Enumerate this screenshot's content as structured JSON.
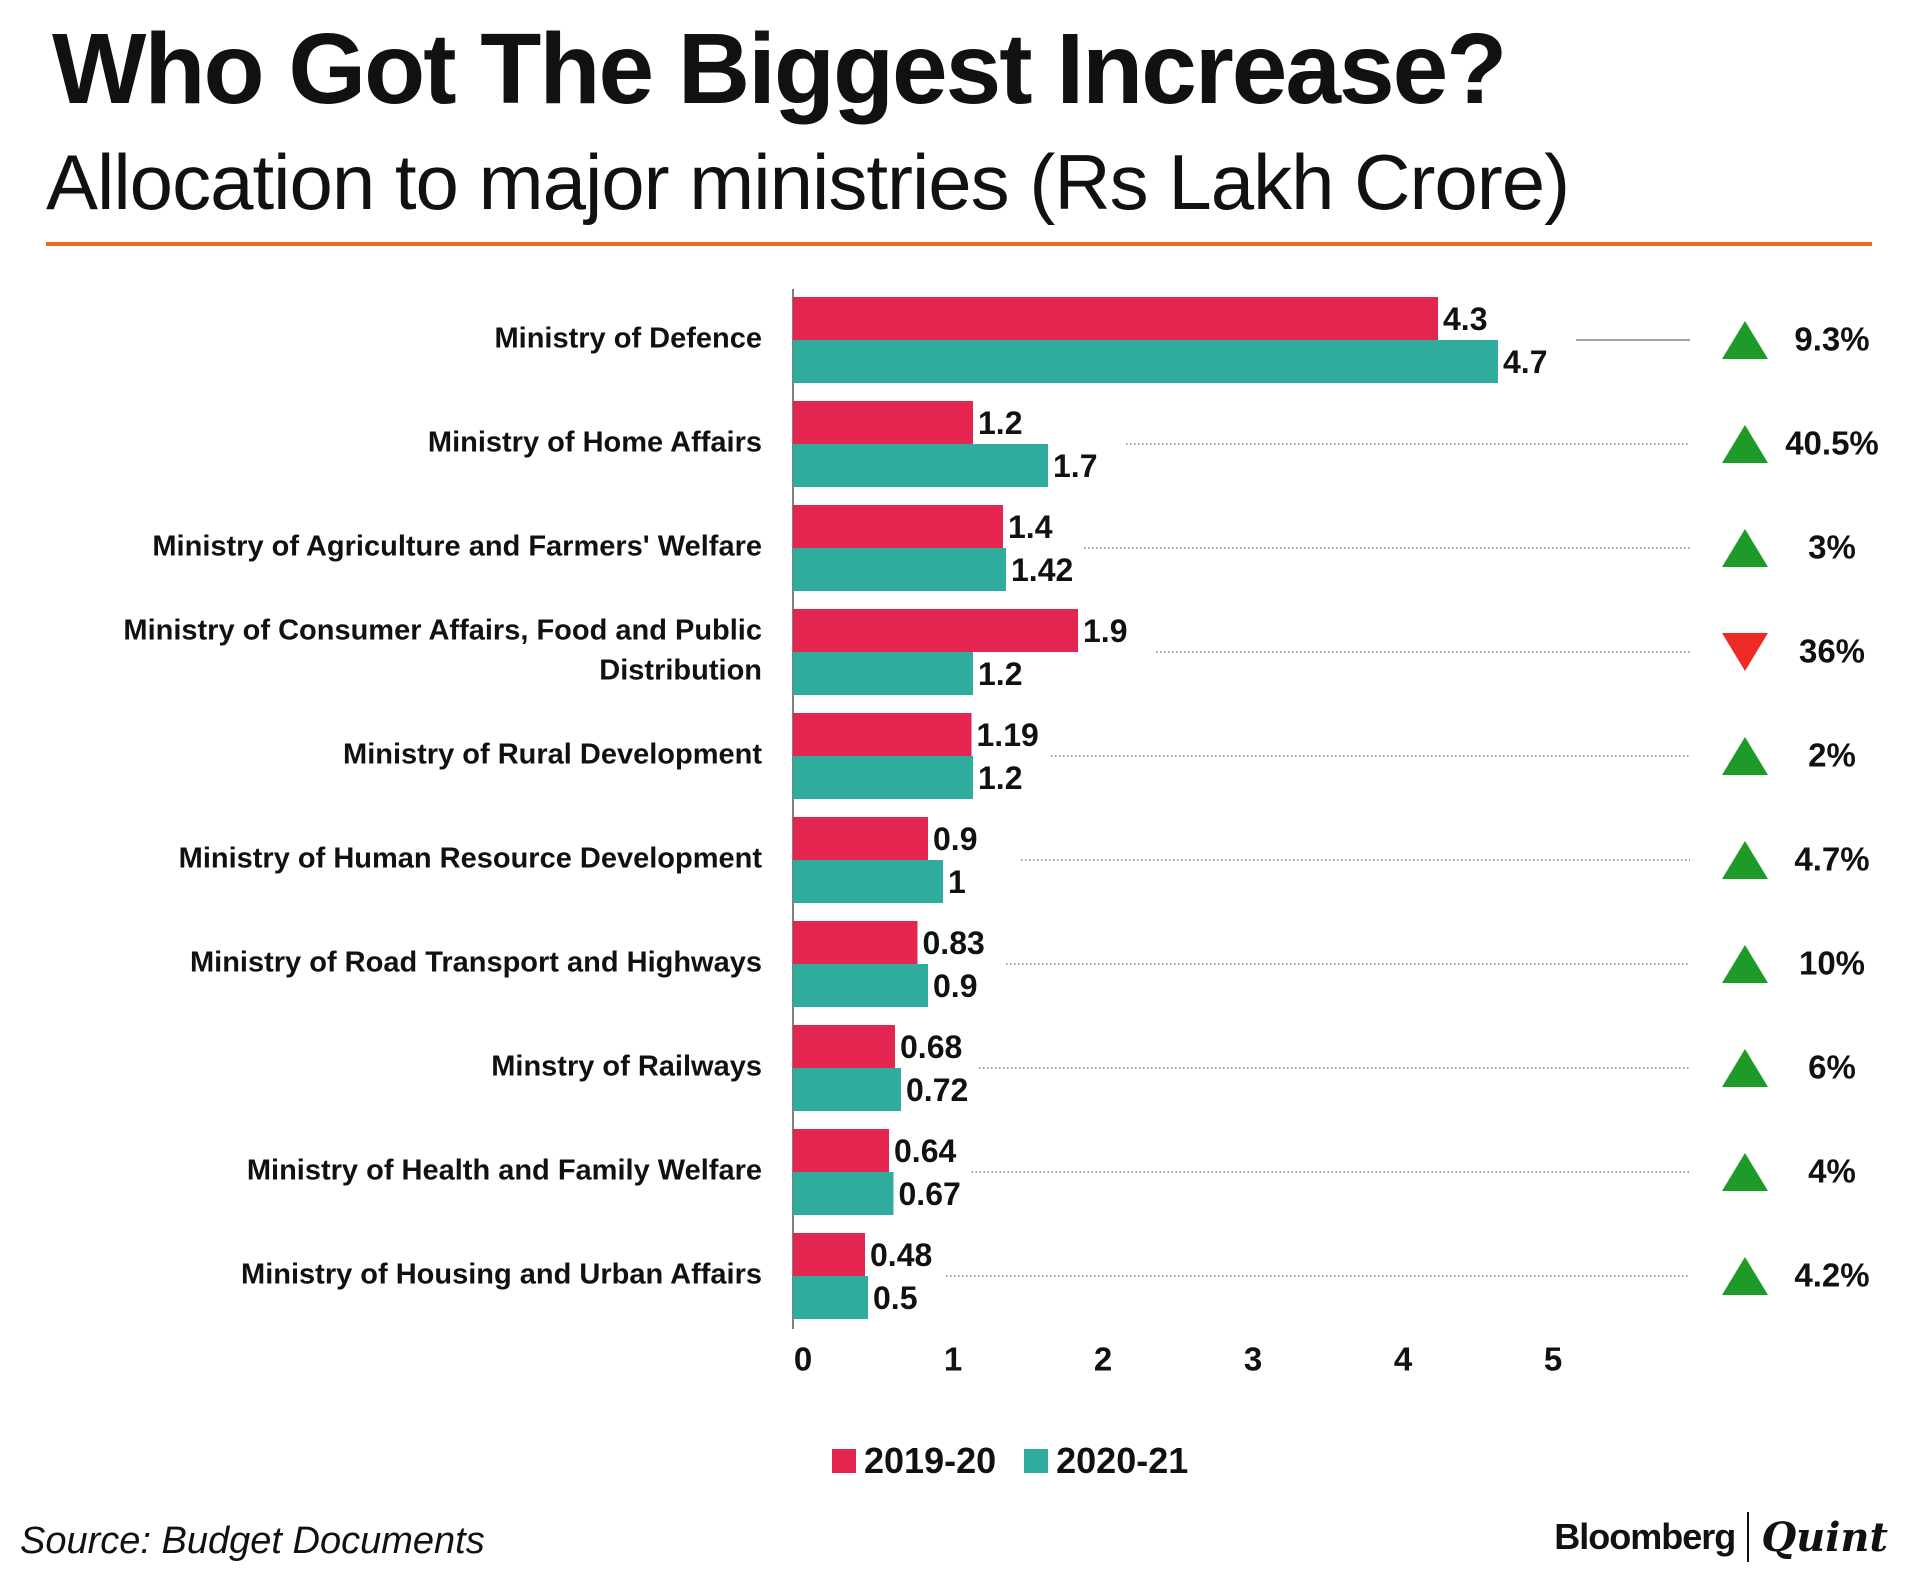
{
  "header": {
    "title": "Who Got The Biggest Increase?",
    "subtitle": "Allocation to major ministries (Rs Lakh Crore)"
  },
  "colors": {
    "series_2019": "#e3254f",
    "series_2020": "#2fac9e",
    "up": "#1e9a28",
    "down": "#ee2a24",
    "accent_rule": "#ee6a24"
  },
  "chart_data": {
    "type": "bar",
    "orientation": "horizontal",
    "title": "Who Got The Biggest Increase?",
    "subtitle": "Allocation to major ministries (Rs Lakh Crore)",
    "categories": [
      "Ministry of Defence",
      "Ministry of Home Affairs",
      "Ministry of Agriculture and Farmers' Welfare",
      "Ministry of Consumer Affairs, Food and Public Distribution",
      "Ministry of Rural Development",
      "Ministry of Human Resource Development",
      "Ministry of Road Transport and Highways",
      "Minstry of Railways",
      "Ministry of Health and Family Welfare",
      "Ministry of Housing and Urban Affairs"
    ],
    "category_label_lines": [
      [
        "Ministry of Defence"
      ],
      [
        "Ministry of Home Affairs"
      ],
      [
        "Ministry of Agriculture and Farmers' Welfare"
      ],
      [
        "Ministry of Consumer Affairs, Food and Public",
        "Distribution"
      ],
      [
        "Ministry of Rural Development"
      ],
      [
        "Ministry of Human Resource Development"
      ],
      [
        "Ministry of Road Transport and Highways"
      ],
      [
        "Minstry of Railways"
      ],
      [
        "Ministry of Health and Family Welfare"
      ],
      [
        "Ministry of Housing and Urban Affairs"
      ]
    ],
    "series": [
      {
        "name": "2019-20",
        "values": [
          4.3,
          1.2,
          1.4,
          1.9,
          1.19,
          0.9,
          0.83,
          0.68,
          0.64,
          0.48
        ],
        "labels": [
          "4.3",
          "1.2",
          "1.4",
          "1.9",
          "1.19",
          "0.9",
          "0.83",
          "0.68",
          "0.64",
          "0.48"
        ]
      },
      {
        "name": "2020-21",
        "values": [
          4.7,
          1.7,
          1.42,
          1.2,
          1.2,
          1,
          0.9,
          0.72,
          0.67,
          0.5
        ],
        "labels": [
          "4.7",
          "1.7",
          "1.42",
          "1.2",
          "1.2",
          "1",
          "0.9",
          "0.72",
          "0.67",
          "0.5"
        ]
      }
    ],
    "changes": [
      {
        "direction": "up",
        "label": "9.3%"
      },
      {
        "direction": "up",
        "label": "40.5%"
      },
      {
        "direction": "up",
        "label": "3%"
      },
      {
        "direction": "down",
        "label": "36%"
      },
      {
        "direction": "up",
        "label": "2%"
      },
      {
        "direction": "up",
        "label": "4.7%"
      },
      {
        "direction": "up",
        "label": "10%"
      },
      {
        "direction": "up",
        "label": "6%"
      },
      {
        "direction": "up",
        "label": "4%"
      },
      {
        "direction": "up",
        "label": "4.2%"
      }
    ],
    "xticks": [
      "0",
      "1",
      "2",
      "3",
      "4",
      "5"
    ],
    "xlim": [
      0,
      5
    ],
    "grid": false,
    "legend": "bottom-center"
  },
  "footer": {
    "source": "Source: Budget Documents",
    "brand_left": "Bloomberg",
    "brand_right": "Quint"
  }
}
